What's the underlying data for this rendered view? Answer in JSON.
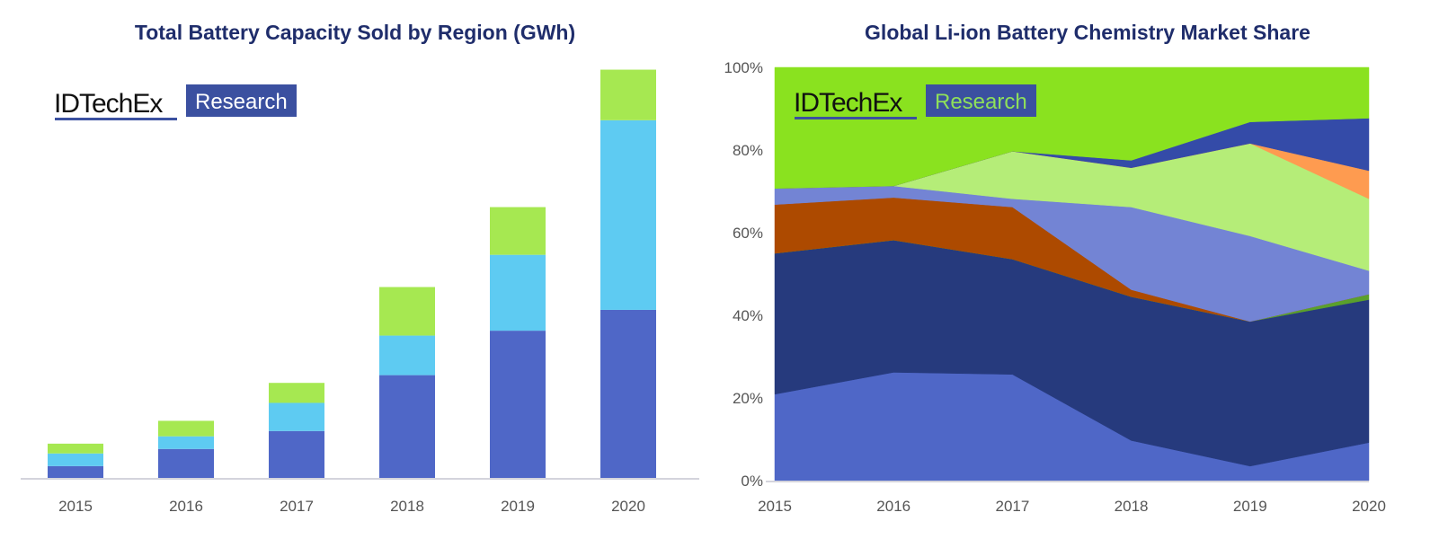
{
  "chart_data": [
    {
      "type": "bar",
      "stacked": true,
      "title": "Total Battery Capacity Sold by Region (GWh)",
      "xlabel": "",
      "ylabel": "",
      "value_note": "relative estimates (no y-axis shown); 2020 total = 100",
      "categories": [
        "2015",
        "2016",
        "2017",
        "2018",
        "2019",
        "2020"
      ],
      "series": [
        {
          "color": "#4f67c7",
          "values": [
            2.9,
            7.1,
            11.5,
            25.2,
            36.1,
            41.2
          ]
        },
        {
          "color": "#5ecbf2",
          "values": [
            3.1,
            3.1,
            6.9,
            9.7,
            18.6,
            46.5
          ]
        },
        {
          "color": "#a6e851",
          "values": [
            2.4,
            3.8,
            4.9,
            11.9,
            11.7,
            12.4
          ]
        }
      ],
      "ylim": [
        0,
        100
      ],
      "grid": false,
      "legend": "none",
      "logo": {
        "brand": "IDTechEx",
        "tag": "Research"
      }
    },
    {
      "type": "area",
      "stacked": true,
      "title": "Global Li-ion Battery Chemistry Market Share",
      "xlabel": "",
      "ylabel": "",
      "x": [
        "2015",
        "2016",
        "2017",
        "2018",
        "2019",
        "2020"
      ],
      "yticks": [
        "0%",
        "20%",
        "40%",
        "60%",
        "80%",
        "100%"
      ],
      "ylim": [
        0,
        100
      ],
      "series": [
        {
          "color": "#4f67c7",
          "values": [
            20.9,
            26.2,
            25.7,
            9.7,
            3.5,
            9.2
          ]
        },
        {
          "color": "#263a7d",
          "values": [
            34.1,
            32.0,
            27.9,
            34.8,
            35.0,
            34.6
          ]
        },
        {
          "color": "#5aa02c",
          "values": [
            0,
            0,
            0,
            0,
            0,
            1.3
          ]
        },
        {
          "color": "#ad4a00",
          "values": [
            11.8,
            10.3,
            12.6,
            1.7,
            0,
            0
          ]
        },
        {
          "color": "#7384d4",
          "values": [
            3.9,
            2.8,
            2.0,
            20.0,
            20.7,
            5.7
          ]
        },
        {
          "color": "#b5ed78",
          "values": [
            0,
            0,
            11.5,
            9.5,
            22.4,
            17.4
          ]
        },
        {
          "color": "#fe9b50",
          "values": [
            0,
            0,
            0,
            0,
            0,
            6.8
          ]
        },
        {
          "color": "#344ba8",
          "values": [
            0,
            0,
            0,
            1.8,
            5.2,
            12.7
          ]
        },
        {
          "color": "#8ae21f",
          "values": [
            29.3,
            28.7,
            20.3,
            22.5,
            13.2,
            12.3
          ]
        }
      ],
      "grid": false,
      "legend": "none",
      "logo": {
        "brand": "IDTechEx",
        "tag": "Research"
      }
    }
  ]
}
